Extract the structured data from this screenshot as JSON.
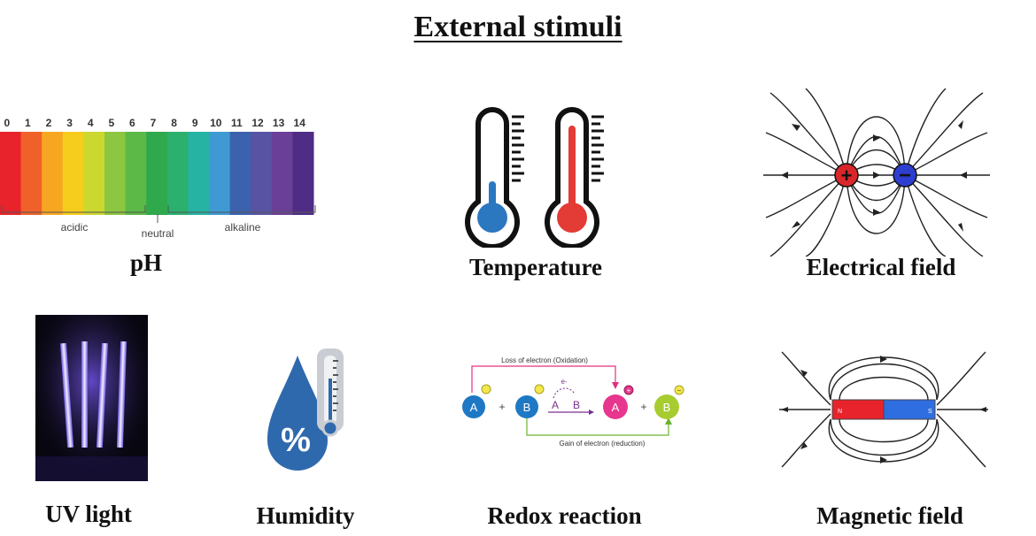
{
  "title": "External stimuli",
  "panels": {
    "ph": {
      "caption": "pH",
      "scale": [
        "0",
        "1",
        "2",
        "3",
        "4",
        "5",
        "6",
        "7",
        "8",
        "9",
        "10",
        "11",
        "12",
        "13",
        "14"
      ],
      "colors": [
        "#e8232b",
        "#f0612a",
        "#f7a622",
        "#f6cd1c",
        "#cbd82f",
        "#8dc640",
        "#5cb947",
        "#2fa94b",
        "#2bb06e",
        "#26b3a3",
        "#3f9ad3",
        "#3c62ae",
        "#5953a3",
        "#6a3f98",
        "#4f2c86"
      ],
      "labels": {
        "acidic": "acidic",
        "neutral": "neutral",
        "alkaline": "alkaline"
      }
    },
    "temperature": {
      "caption": "Temperature",
      "cold_color": "#2c78c0",
      "hot_color": "#e33b35"
    },
    "electrical": {
      "caption": "Electrical field",
      "positive_symbol": "+",
      "negative_symbol": "−",
      "positive_color": "#d9262b",
      "negative_color": "#2d3fd0"
    },
    "uv": {
      "caption": "UV light"
    },
    "humidity": {
      "caption": "Humidity",
      "symbol": "%",
      "drop_color": "#2f69ad"
    },
    "redox": {
      "caption": "Redox reaction",
      "loss_label": "Loss of electron (Oxidation)",
      "gain_label": "Gain of electron (reduction)",
      "electron_label": "e-",
      "atom_a": "A",
      "atom_b": "B",
      "plus": "+",
      "charge_plus": "+",
      "charge_minus": "−"
    },
    "magnetic": {
      "caption": "Magnetic field",
      "north": "N",
      "south": "S",
      "north_color": "#e8232b",
      "south_color": "#2f6ee0"
    }
  }
}
